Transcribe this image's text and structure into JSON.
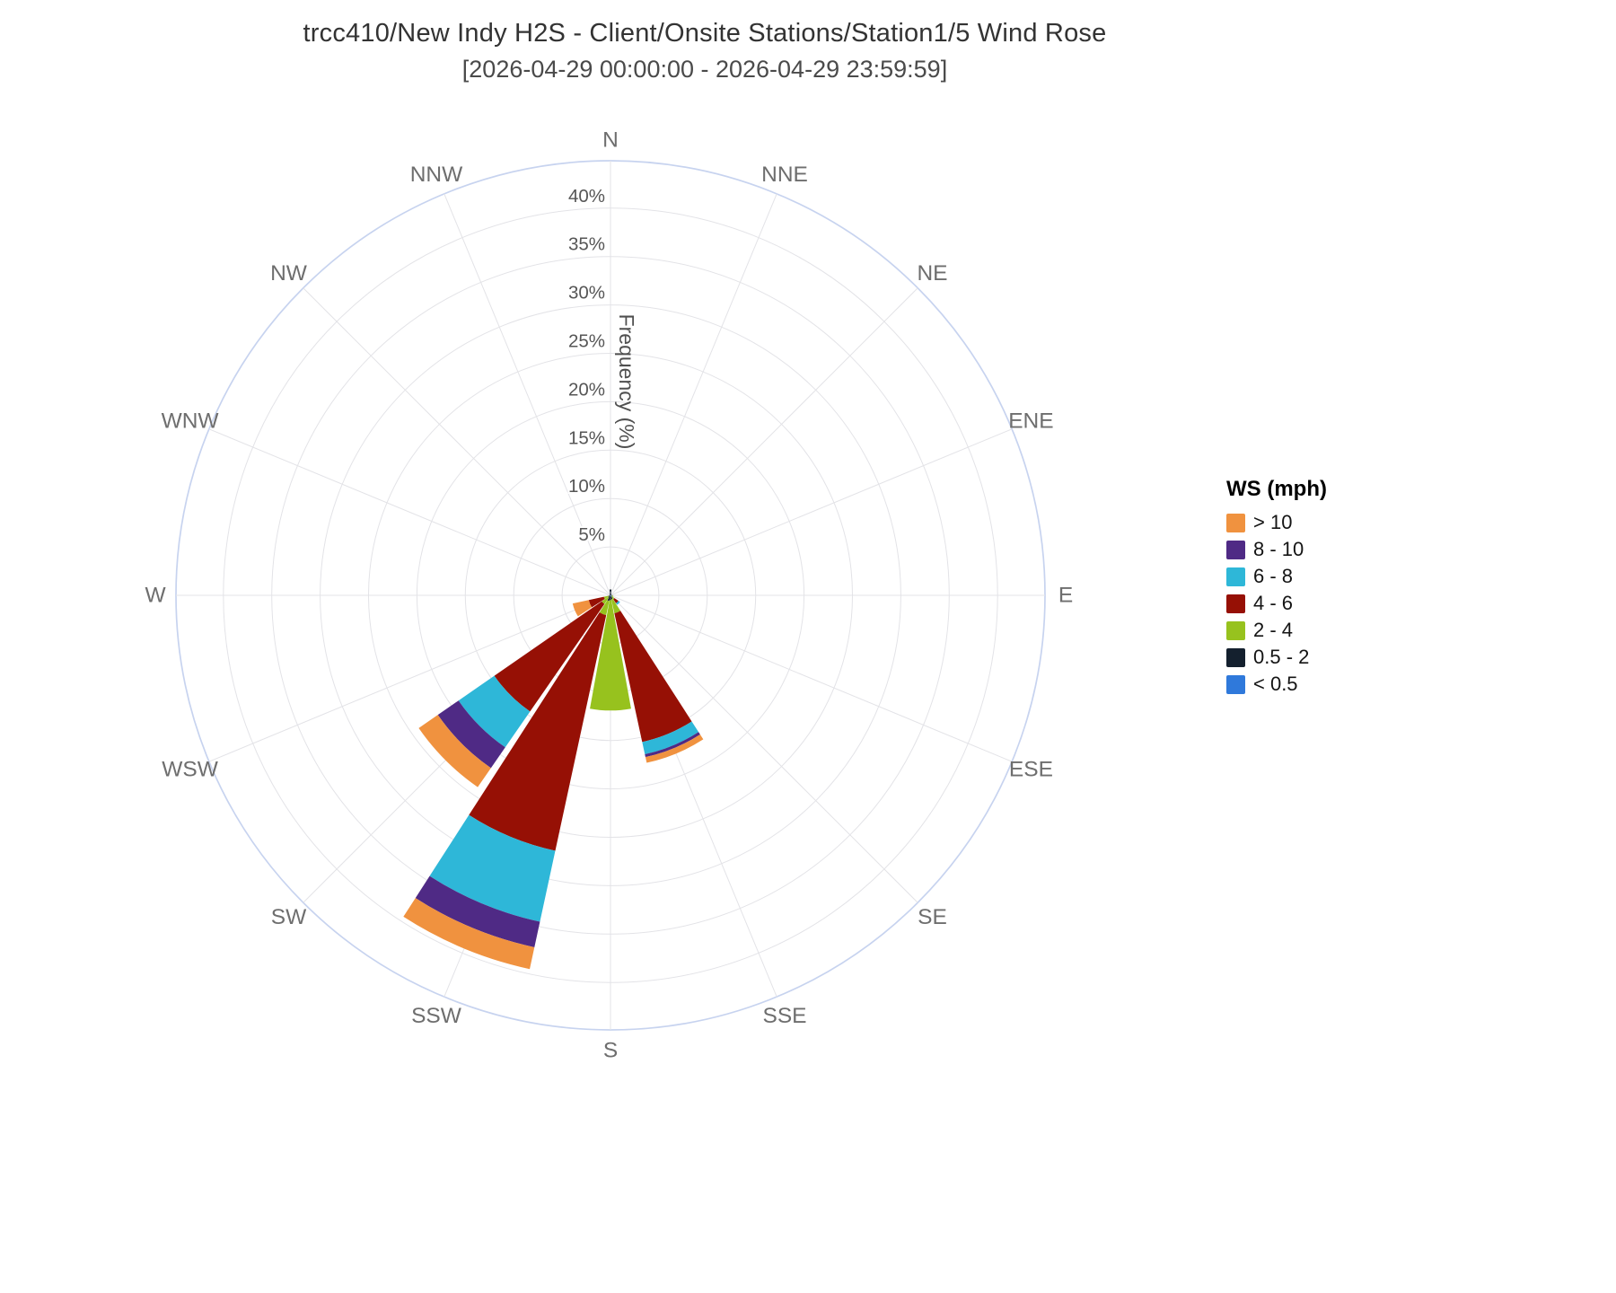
{
  "title": "trcc410/New Indy H2S - Client/Onsite Stations/Station1/5 Wind Rose",
  "subtitle": "[2026-04-29 00:00:00 - 2026-04-29 23:59:59]",
  "legend": {
    "title": "WS (mph)",
    "entries": [
      {
        "label": "> 10",
        "color": "#F0923F"
      },
      {
        "label": "8 - 10",
        "color": "#4F2A85"
      },
      {
        "label": "6 - 8",
        "color": "#2EB7D8"
      },
      {
        "label": "4 - 6",
        "color": "#961005"
      },
      {
        "label": "2 - 4",
        "color": "#97C21E"
      },
      {
        "label": "0.5 - 2",
        "color": "#14202E"
      },
      {
        "label": "< 0.5",
        "color": "#2F79DB"
      }
    ]
  },
  "chart_data": {
    "type": "bar",
    "subtype": "wind-rose-polar-stacked-bar",
    "radial_axis": {
      "label": "Frequency (%)",
      "ticks": [
        "5%",
        "10%",
        "15%",
        "20%",
        "25%",
        "30%",
        "35%",
        "40%"
      ],
      "tick_values": [
        5,
        10,
        15,
        20,
        25,
        30,
        35,
        40
      ],
      "max": 45
    },
    "directions": [
      "N",
      "NNE",
      "NE",
      "ENE",
      "E",
      "ESE",
      "SE",
      "SSE",
      "S",
      "SSW",
      "SW",
      "WSW",
      "W",
      "WNW",
      "NW",
      "NNW"
    ],
    "units": "percent frequency by wind-speed bin (mph)",
    "series": [
      {
        "name": "< 0.5",
        "color": "#2F79DB",
        "values": [
          0.1,
          0,
          0,
          0,
          0,
          0,
          0.2,
          0.1,
          0.1,
          0.1,
          0,
          0,
          0,
          0,
          0,
          0
        ]
      },
      {
        "name": "0.5 - 2",
        "color": "#14202E",
        "values": [
          0.5,
          0.2,
          0.1,
          0.1,
          0.2,
          0.1,
          0,
          0.3,
          0.4,
          0.5,
          0.3,
          0.2,
          0.1,
          0.1,
          0.1,
          0.2
        ]
      },
      {
        "name": "2 - 4",
        "color": "#97C21E",
        "values": [
          0,
          0,
          0,
          0,
          0,
          0.2,
          0.3,
          1.5,
          11.4,
          1.5,
          0.8,
          0.5,
          0,
          0,
          0,
          0
        ]
      },
      {
        "name": "4 - 6",
        "color": "#961005",
        "values": [
          0,
          0,
          0,
          0,
          0,
          0,
          0.5,
          13.6,
          0,
          24.9,
          13.5,
          1.6,
          0,
          0,
          0,
          0
        ]
      },
      {
        "name": "6 - 8",
        "color": "#2EB7D8",
        "values": [
          0,
          0,
          0,
          0,
          0,
          0,
          0.2,
          1.3,
          0,
          7.5,
          4.5,
          0,
          0,
          0,
          0,
          0
        ]
      },
      {
        "name": "8 - 10",
        "color": "#4F2A85",
        "values": [
          0,
          0,
          0,
          0,
          0,
          0,
          0,
          0.3,
          0,
          2.7,
          2.6,
          0,
          0,
          0,
          0,
          0
        ]
      },
      {
        "name": "> 10",
        "color": "#F0923F",
        "values": [
          0,
          0,
          0,
          0,
          0,
          0,
          0,
          0.6,
          0,
          2.3,
          2.4,
          1.7,
          0,
          0,
          0,
          0
        ]
      }
    ],
    "grid": {
      "rings_every_pct": 5,
      "spokes_every_deg": 22.5,
      "ring_color": "#e3e3e7",
      "boundary_color": "#c7d3ef"
    }
  }
}
